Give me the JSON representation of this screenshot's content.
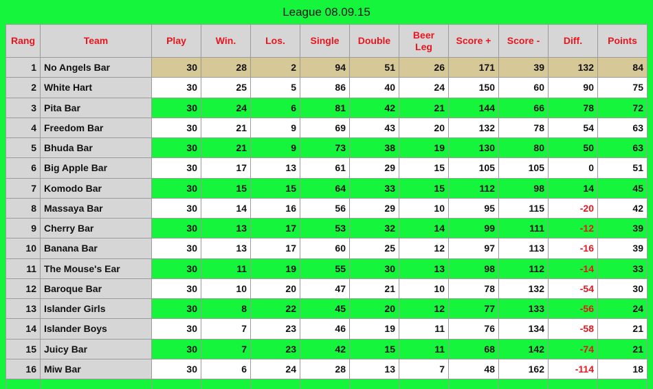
{
  "title": "League 08.09.15",
  "headers": [
    "Rang",
    "Team",
    "Play",
    "Win.",
    "Los.",
    "Single",
    "Double",
    "Beer Leg",
    "Score +",
    "Score -",
    "Diff.",
    "Points"
  ],
  "rows": [
    [
      "1",
      "No Angels Bar",
      "30",
      "28",
      "2",
      "94",
      "51",
      "26",
      "171",
      "39",
      "132",
      "84"
    ],
    [
      "2",
      "White Hart",
      "30",
      "25",
      "5",
      "86",
      "40",
      "24",
      "150",
      "60",
      "90",
      "75"
    ],
    [
      "3",
      "Pita Bar",
      "30",
      "24",
      "6",
      "81",
      "42",
      "21",
      "144",
      "66",
      "78",
      "72"
    ],
    [
      "4",
      "Freedom Bar",
      "30",
      "21",
      "9",
      "69",
      "43",
      "20",
      "132",
      "78",
      "54",
      "63"
    ],
    [
      "5",
      "Bhuda Bar",
      "30",
      "21",
      "9",
      "73",
      "38",
      "19",
      "130",
      "80",
      "50",
      "63"
    ],
    [
      "6",
      "Big Apple Bar",
      "30",
      "17",
      "13",
      "61",
      "29",
      "15",
      "105",
      "105",
      "0",
      "51"
    ],
    [
      "7",
      "Komodo Bar",
      "30",
      "15",
      "15",
      "64",
      "33",
      "15",
      "112",
      "98",
      "14",
      "45"
    ],
    [
      "8",
      "Massaya Bar",
      "30",
      "14",
      "16",
      "56",
      "29",
      "10",
      "95",
      "115",
      "-20",
      "42"
    ],
    [
      "9",
      "Cherry Bar",
      "30",
      "13",
      "17",
      "53",
      "32",
      "14",
      "99",
      "111",
      "-12",
      "39"
    ],
    [
      "10",
      "Banana Bar",
      "30",
      "13",
      "17",
      "60",
      "25",
      "12",
      "97",
      "113",
      "-16",
      "39"
    ],
    [
      "11",
      "The Mouse's Ear",
      "30",
      "11",
      "19",
      "55",
      "30",
      "13",
      "98",
      "112",
      "-14",
      "33"
    ],
    [
      "12",
      "Baroque Bar",
      "30",
      "10",
      "20",
      "47",
      "21",
      "10",
      "78",
      "132",
      "-54",
      "30"
    ],
    [
      "13",
      "Islander Girls",
      "30",
      "8",
      "22",
      "45",
      "20",
      "12",
      "77",
      "133",
      "-56",
      "24"
    ],
    [
      "14",
      "Islander Boys",
      "30",
      "7",
      "23",
      "46",
      "19",
      "11",
      "76",
      "134",
      "-58",
      "21"
    ],
    [
      "15",
      "Juicy Bar",
      "30",
      "7",
      "23",
      "42",
      "15",
      "11",
      "68",
      "142",
      "-74",
      "21"
    ],
    [
      "16",
      "Miw Bar",
      "30",
      "6",
      "24",
      "28",
      "13",
      "7",
      "48",
      "162",
      "-114",
      "18"
    ]
  ],
  "colors": {
    "background": "#14f53c",
    "header_text": "#e8141e",
    "first_row": "#d7c898",
    "negative": "#e8141e"
  }
}
